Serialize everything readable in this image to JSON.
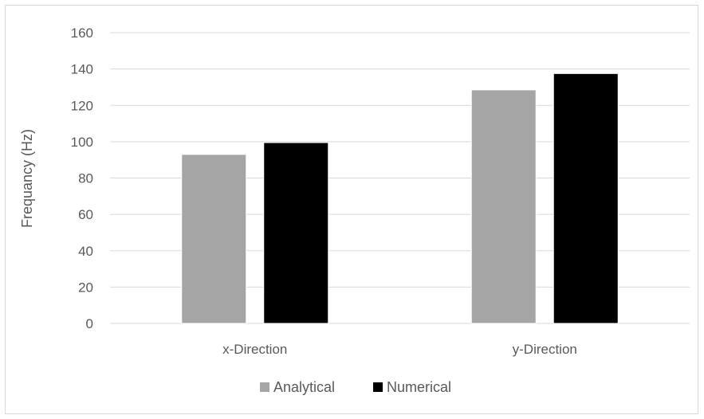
{
  "chart_data": {
    "type": "bar",
    "categories": [
      "x-Direction",
      "y-Direction"
    ],
    "series": [
      {
        "name": "Analytical",
        "values": [
          93,
          128.5
        ],
        "color": "#a5a5a5"
      },
      {
        "name": "Numerical",
        "values": [
          99.5,
          137.5
        ],
        "color": "#000000"
      }
    ],
    "xlabel": "",
    "ylabel": "Frequancy (Hz)",
    "ylim": [
      0,
      160
    ],
    "yticks": [
      0,
      20,
      40,
      60,
      80,
      100,
      120,
      140,
      160
    ],
    "grid": true,
    "legend": "bottom-center"
  }
}
